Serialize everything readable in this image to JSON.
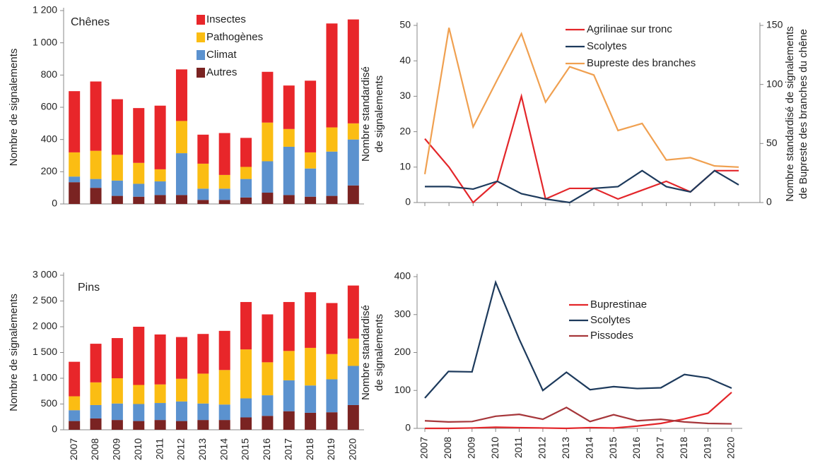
{
  "chart_data": [
    {
      "type": "bar",
      "stacked": true,
      "title": "Chênes",
      "y_label": [
        "Nombre de signalements"
      ],
      "categories": [
        null,
        null,
        null,
        null,
        null,
        null,
        null,
        null,
        null,
        null,
        null,
        null,
        null,
        null
      ],
      "series": [
        {
          "name": "Autres",
          "color": "#7a2322",
          "values": [
            135,
            100,
            50,
            45,
            55,
            55,
            25,
            25,
            40,
            70,
            55,
            45,
            50,
            115
          ]
        },
        {
          "name": "Climat",
          "color": "#5b92cf",
          "values": [
            35,
            55,
            95,
            80,
            85,
            260,
            70,
            70,
            115,
            195,
            300,
            175,
            275,
            285
          ]
        },
        {
          "name": "Pathogènes",
          "color": "#fbbd13",
          "values": [
            150,
            175,
            160,
            130,
            75,
            200,
            155,
            85,
            75,
            240,
            110,
            100,
            150,
            100
          ]
        },
        {
          "name": "Insectes",
          "color": "#e8262a",
          "values": [
            380,
            430,
            345,
            340,
            395,
            320,
            180,
            260,
            180,
            315,
            270,
            445,
            645,
            645
          ]
        }
      ],
      "ylim": [
        0,
        1200
      ],
      "yticks": [
        0,
        200,
        400,
        600,
        800,
        {
          "value": 1000,
          "label": "1 000"
        },
        {
          "value": 1200,
          "label": "1 200"
        }
      ]
    },
    {
      "type": "line",
      "y_label": [
        "Nombre standardisé",
        "de signalements"
      ],
      "y2_label": [
        "Nombre standardisé de signalements",
        "de Bupreste des branches du chêne"
      ],
      "categories": [
        null,
        null,
        null,
        null,
        null,
        null,
        null,
        null,
        null,
        null,
        null,
        null,
        null,
        null
      ],
      "series": [
        {
          "name": "Agrilinae sur tronc",
          "color": "#e3262a",
          "values": [
            18,
            10,
            0,
            6,
            30,
            1,
            4,
            4,
            1,
            3.5,
            6,
            3,
            9,
            9
          ]
        },
        {
          "name": "Scolytes",
          "color": "#1d3a5c",
          "values": [
            4.5,
            4.5,
            3.8,
            6,
            2.5,
            1,
            0,
            4,
            4.5,
            9,
            4.5,
            3,
            9,
            5
          ]
        },
        {
          "name": "Bupreste des branches",
          "color": "#f0a050",
          "axis": "y2",
          "values": [
            24,
            148,
            64,
            104,
            143,
            85,
            115,
            108,
            61,
            67,
            36,
            38,
            31,
            30
          ]
        }
      ],
      "ylim": [
        0,
        50
      ],
      "yticks": [
        0,
        10,
        20,
        30,
        40,
        50
      ],
      "y2lim": [
        0,
        150
      ],
      "y2ticks": [
        0,
        50,
        100,
        150
      ]
    },
    {
      "type": "bar",
      "stacked": true,
      "title": "Pins",
      "y_label": [
        "Nombre de signalements"
      ],
      "categories": [
        "2007",
        "2008",
        "2009",
        "2010",
        "2011",
        "2012",
        "2013",
        "2014",
        "2015",
        "2016",
        "2017",
        "2018",
        "2019",
        "2020"
      ],
      "series": [
        {
          "color": "#7a2322",
          "values": [
            170,
            220,
            190,
            170,
            190,
            170,
            190,
            190,
            240,
            270,
            360,
            330,
            340,
            480
          ]
        },
        {
          "color": "#5b92cf",
          "values": [
            210,
            260,
            320,
            330,
            330,
            380,
            320,
            300,
            370,
            400,
            600,
            530,
            640,
            760
          ]
        },
        {
          "color": "#fbbd13",
          "values": [
            270,
            440,
            490,
            370,
            360,
            440,
            580,
            670,
            950,
            640,
            570,
            730,
            490,
            530
          ]
        },
        {
          "color": "#e8262a",
          "values": [
            670,
            750,
            780,
            1130,
            970,
            810,
            770,
            760,
            920,
            930,
            950,
            1080,
            990,
            1030
          ]
        }
      ],
      "ylim": [
        0,
        3000
      ],
      "yticks": [
        0,
        500,
        {
          "value": 1000,
          "label": "1 000"
        },
        {
          "value": 1500,
          "label": "1 500"
        },
        {
          "value": 2000,
          "label": "2 000"
        },
        {
          "value": 2500,
          "label": "2 500"
        },
        {
          "value": 3000,
          "label": "3 000"
        }
      ]
    },
    {
      "type": "line",
      "y_label": [
        "Nombre standardisé",
        "de signalements"
      ],
      "categories": [
        "2007",
        "2008",
        "2009",
        "2010",
        "2011",
        "2012",
        "2013",
        "2014",
        "2015",
        "2016",
        "2017",
        "2018",
        "2019",
        "2020"
      ],
      "series": [
        {
          "name": "Buprestinae",
          "color": "#e3262a",
          "values": [
            0,
            0,
            1,
            3,
            2,
            1,
            0,
            2,
            1,
            6,
            13,
            25,
            40,
            95
          ]
        },
        {
          "name": "Scolytes",
          "color": "#1d3a5c",
          "values": [
            80,
            150,
            149,
            385,
            235,
            100,
            148,
            102,
            110,
            105,
            107,
            142,
            133,
            106
          ]
        },
        {
          "name": "Pissodes",
          "color": "#a6363a",
          "values": [
            20,
            17,
            18,
            32,
            37,
            24,
            55,
            18,
            36,
            20,
            24,
            17,
            13,
            12
          ]
        }
      ],
      "ylim": [
        0,
        400
      ],
      "yticks": [
        0,
        100,
        200,
        300,
        400
      ]
    }
  ]
}
